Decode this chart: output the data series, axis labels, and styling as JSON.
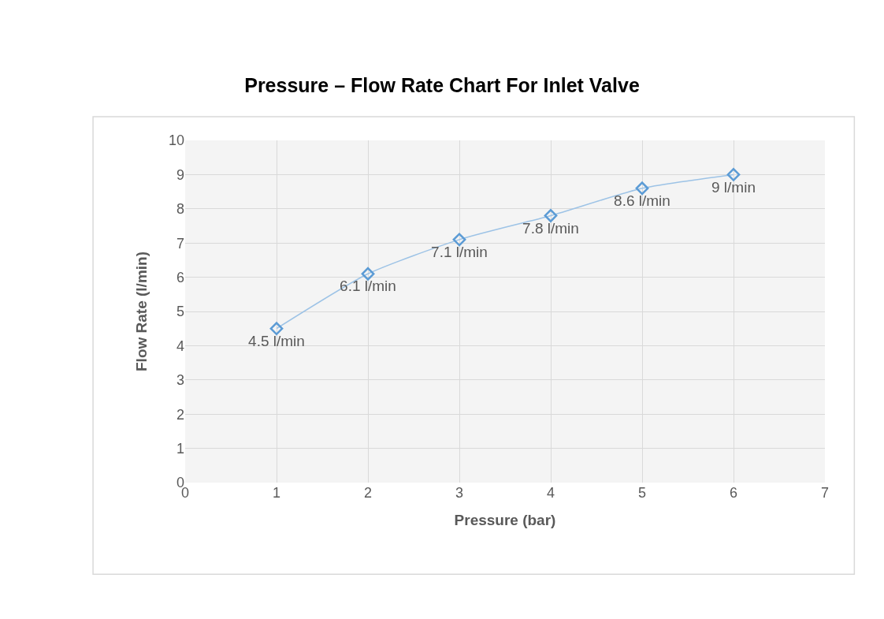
{
  "chart_data": {
    "type": "line",
    "title": "Pressure – Flow Rate Chart For Inlet Valve",
    "xlabel": "Pressure (bar)",
    "ylabel": "Flow Rate (l/min)",
    "x": [
      1,
      2,
      3,
      4,
      5,
      6
    ],
    "series": [
      {
        "color": "#5b9bd5",
        "values": [
          4.5,
          6.1,
          7.1,
          7.8,
          8.6,
          9
        ],
        "value_labels": [
          "4.5 l/min",
          "6.1 l/min",
          "7.1 l/min",
          "7.8 l/min",
          "8.6 l/min",
          "9 l/min"
        ]
      }
    ],
    "xlim": [
      0,
      7
    ],
    "xticks": [
      0,
      1,
      2,
      3,
      4,
      5,
      6,
      7
    ],
    "ylim": [
      0,
      10
    ],
    "yticks": [
      0,
      1,
      2,
      3,
      4,
      5,
      6,
      7,
      8,
      9,
      10
    ],
    "grid": true,
    "marker": "diamond",
    "line_style": "solid"
  }
}
